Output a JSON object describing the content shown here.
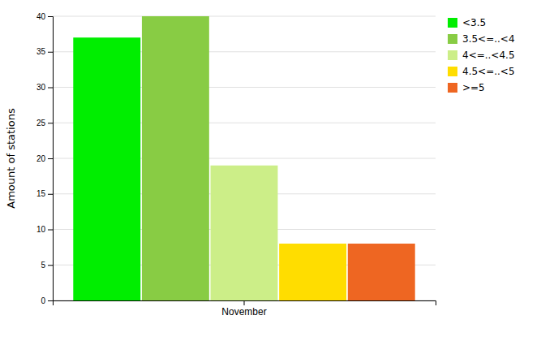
{
  "chart_data": {
    "type": "bar",
    "categories": [
      "November"
    ],
    "series": [
      {
        "name": "<3.5",
        "color": "#00ee00",
        "values": [
          37
        ]
      },
      {
        "name": "3.5<=..<4",
        "color": "#88cc44",
        "values": [
          40
        ]
      },
      {
        "name": "4<=..<4.5",
        "color": "#ccee88",
        "values": [
          19
        ]
      },
      {
        "name": "4.5<=..<5",
        "color": "#ffdd00",
        "values": [
          8
        ]
      },
      {
        "name": ">=5",
        "color": "#ee6622",
        "values": [
          8
        ]
      }
    ],
    "ylabel": "Amount of stations",
    "ylim": [
      0,
      40
    ],
    "yticks": [
      0,
      5,
      10,
      15,
      20,
      25,
      30,
      35,
      40
    ],
    "grid": true,
    "legend": "upper right"
  }
}
